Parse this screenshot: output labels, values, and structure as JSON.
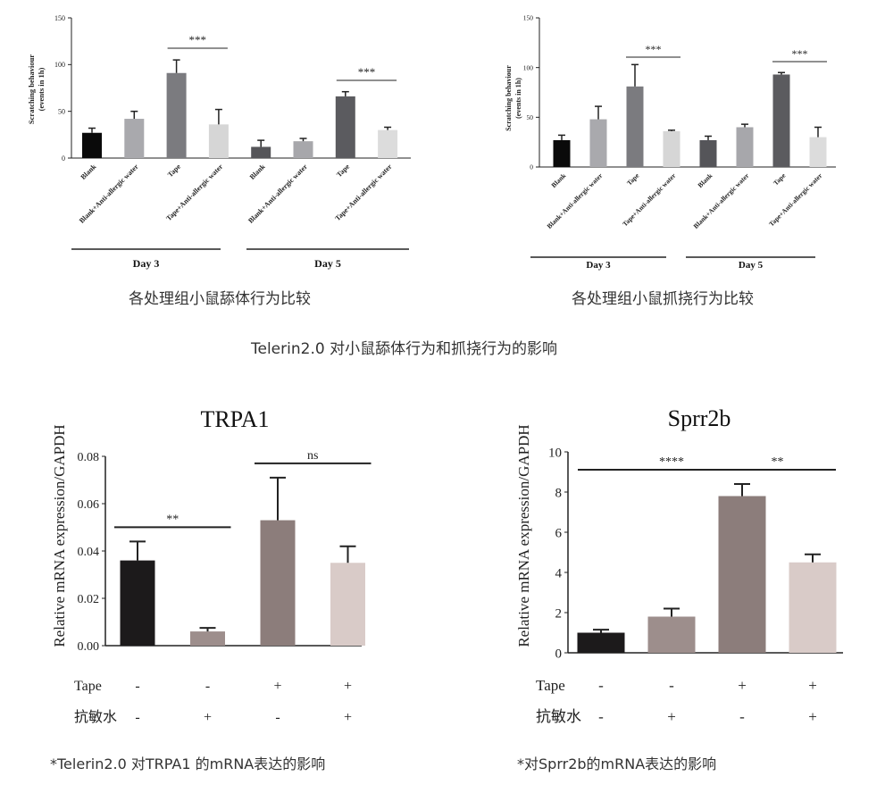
{
  "captions": {
    "c1": "各处理组小鼠舔体行为比较",
    "c2": "各处理组小鼠抓挠行为比较",
    "main": "Telerin2.0 对小鼠舔体行为和抓挠行为的影响",
    "c3": "*Telerin2.0 对TRPA1 的mRNA表达的影响",
    "c4": "*对Sprr2b的mRNA表达的影响"
  },
  "chart_data": [
    {
      "id": "licking",
      "type": "bar",
      "title": "",
      "ylabel": "Scratching behaviour",
      "ylabel2": "(events in 1h)",
      "ylim": [
        0,
        150
      ],
      "yticks": [
        0,
        50,
        100,
        150
      ],
      "categories": [
        "Blank",
        "Blank+Anti-allergic water",
        "Tape",
        "Tape+Anti-allergic water",
        "Blank",
        "Blank+Anti-allergic water",
        "Tape",
        "Tape+Anti-allergic water"
      ],
      "values": [
        27,
        42,
        91,
        36,
        12,
        18,
        66,
        30
      ],
      "errors": [
        5,
        8,
        14,
        16,
        7,
        3,
        5,
        3
      ],
      "colors": [
        "#0a0a0a",
        "#a9a9ad",
        "#7b7b7f",
        "#d6d6d6",
        "#555559",
        "#a7a7ab",
        "#5b5b5f",
        "#dcdcdc"
      ],
      "groups": [
        {
          "label": "Day 3",
          "from": 0,
          "to": 3
        },
        {
          "label": "Day 5",
          "from": 4,
          "to": 7
        }
      ],
      "annotations": [
        {
          "label": "***",
          "from": 2,
          "to": 3
        },
        {
          "label": "***",
          "from": 6,
          "to": 7
        }
      ]
    },
    {
      "id": "scratching",
      "type": "bar",
      "title": "",
      "ylabel": "Scratching behaviour",
      "ylabel2": "(events in 1h)",
      "ylim": [
        0,
        150
      ],
      "yticks": [
        0,
        50,
        100,
        150
      ],
      "categories": [
        "Blank",
        "Blank+Anti-allergic water",
        "Tape",
        "Tape+Anti-allergic water",
        "Blank",
        "Blank+Anti-allergic water",
        "Tape",
        "Tape+Anti-allergic water"
      ],
      "values": [
        27,
        48,
        81,
        36,
        27,
        40,
        93,
        30
      ],
      "errors": [
        5,
        13,
        22,
        1,
        4,
        3,
        2,
        10
      ],
      "colors": [
        "#0a0a0a",
        "#a9a9ad",
        "#7b7b7f",
        "#d6d6d6",
        "#555559",
        "#a7a7ab",
        "#5b5b5f",
        "#dcdcdc"
      ],
      "groups": [
        {
          "label": "Day 3",
          "from": 0,
          "to": 3
        },
        {
          "label": "Day 5",
          "from": 4,
          "to": 7
        }
      ],
      "annotations": [
        {
          "label": "***",
          "from": 2,
          "to": 3
        },
        {
          "label": "***",
          "from": 6,
          "to": 7
        }
      ]
    },
    {
      "id": "trpa1",
      "type": "bar",
      "title": "TRPA1",
      "ylabel": "Relative mRNA expression/GAPDH",
      "ylim": [
        0,
        0.08
      ],
      "yticks": [
        "0.00",
        "0.02",
        "0.04",
        "0.06",
        "0.08"
      ],
      "values": [
        0.036,
        0.006,
        0.053,
        0.035
      ],
      "errors": [
        0.008,
        0.0015,
        0.018,
        0.007
      ],
      "colors": [
        "#1c1a1b",
        "#9d8e8c",
        "#8c7d7b",
        "#d9cbc8"
      ],
      "row_labels": [
        "Tape",
        "抗敏水"
      ],
      "rows": [
        [
          "-",
          "-",
          "+",
          "+"
        ],
        [
          "-",
          "+",
          "-",
          "+"
        ]
      ],
      "annotations": [
        {
          "label": "**",
          "from": 0,
          "to": 1
        },
        {
          "label": "ns",
          "from": 2,
          "to": 3
        }
      ]
    },
    {
      "id": "sprr2b",
      "type": "bar",
      "title": "Sprr2b",
      "ylabel": "Relative mRNA expression/GAPDH",
      "ylim": [
        0,
        10
      ],
      "yticks": [
        "0",
        "2",
        "4",
        "6",
        "8",
        "10"
      ],
      "values": [
        1.0,
        1.8,
        7.8,
        4.5
      ],
      "errors": [
        0.15,
        0.4,
        0.6,
        0.4
      ],
      "colors": [
        "#1c1a1b",
        "#9d8e8c",
        "#8c7d7b",
        "#d9cbc8"
      ],
      "row_labels": [
        "Tape",
        "抗敏水"
      ],
      "rows": [
        [
          "-",
          "-",
          "+",
          "+"
        ],
        [
          "-",
          "+",
          "-",
          "+"
        ]
      ],
      "annotations": [
        {
          "label": "****",
          "from": 0,
          "to": 2
        },
        {
          "label": "**",
          "from": 2,
          "to": 3
        }
      ]
    }
  ]
}
